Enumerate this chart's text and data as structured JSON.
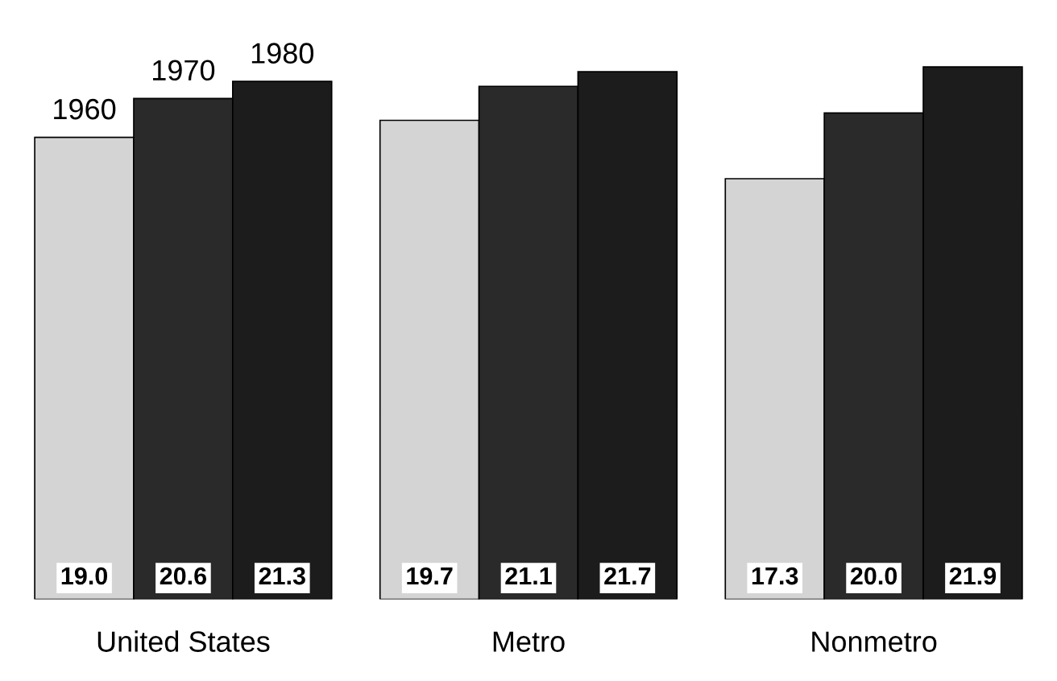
{
  "chart_data": {
    "type": "bar",
    "categories": [
      "United States",
      "Metro",
      "Nonmetro"
    ],
    "series": [
      {
        "name": "1960",
        "color": "#d4d4d4",
        "values": [
          19.0,
          19.7,
          17.3
        ],
        "value_labels": [
          "19.0",
          "19.7",
          "17.3"
        ]
      },
      {
        "name": "1970",
        "color": "#2a2a2a",
        "values": [
          20.6,
          21.1,
          20.0
        ],
        "value_labels": [
          "20.6",
          "21.1",
          "20.0"
        ]
      },
      {
        "name": "1980",
        "color": "#1c1c1c",
        "values": [
          21.3,
          21.7,
          21.9
        ],
        "value_labels": [
          "21.3",
          "21.7",
          "21.9"
        ]
      }
    ],
    "tick_labels": "x",
    "legend": "top left"
  }
}
